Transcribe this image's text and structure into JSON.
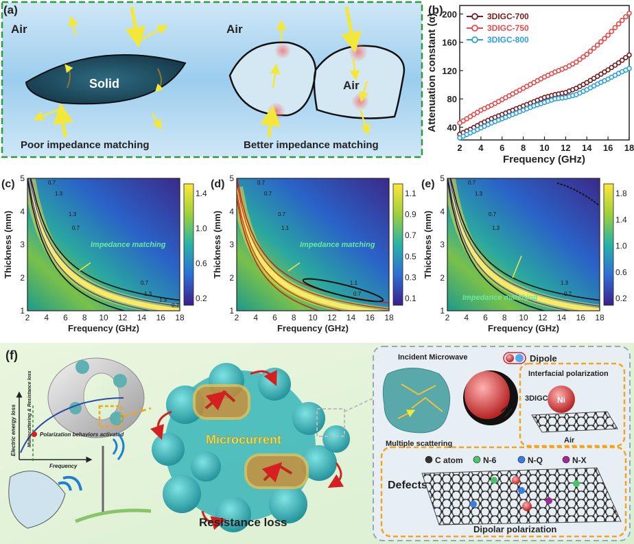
{
  "panel_a": {
    "label": "(a)",
    "left": {
      "air": "Air",
      "solid": "Solid",
      "caption": "Poor impedance matching"
    },
    "right": {
      "air_top": "Air",
      "air_inside": "Air",
      "caption": "Better impedance matching"
    }
  },
  "panel_b": {
    "label": "(b)",
    "chart_data": {
      "type": "line",
      "title": "",
      "xlabel": "Frequency (GHz)",
      "ylabel": "Attenuation constant (α)",
      "xlim": [
        2,
        18
      ],
      "ylim": [
        22,
        212
      ],
      "xticks": [
        "2",
        "4",
        "6",
        "8",
        "10",
        "12",
        "14",
        "16",
        "18"
      ],
      "yticks": [
        "40",
        "80",
        "120",
        "160",
        "200"
      ],
      "x": [
        2,
        3,
        4,
        5,
        6,
        7,
        8,
        9,
        10,
        11,
        12,
        13,
        14,
        15,
        16,
        17,
        18
      ],
      "series": [
        {
          "name": "3DIGC-700",
          "color": "#7a1a1a",
          "values": [
            30,
            37,
            45,
            52,
            58,
            64,
            70,
            76,
            82,
            86,
            89,
            95,
            103,
            112,
            121,
            131,
            142
          ]
        },
        {
          "name": "3DIGC-750",
          "color": "#e84a4a",
          "values": [
            46,
            55,
            64,
            71,
            79,
            87,
            95,
            103,
            111,
            118,
            124,
            132,
            143,
            156,
            170,
            186,
            201
          ]
        },
        {
          "name": "3DIGC-800",
          "color": "#2aa0e0",
          "values": [
            25,
            32,
            39,
            46,
            52,
            58,
            64,
            70,
            75,
            80,
            82,
            86,
            93,
            101,
            108,
            116,
            123
          ]
        }
      ]
    }
  },
  "contour_maps": [
    {
      "label": "(c)",
      "xlabel": "Frequency (GHz)",
      "ylabel": "Thickness (mm)",
      "xticks": [
        "2",
        "4",
        "6",
        "8",
        "10",
        "12",
        "14",
        "16",
        "18"
      ],
      "yticks": [
        "1",
        "2",
        "3",
        "4",
        "5"
      ],
      "colorbar_ticks": [
        "1.4",
        "1.0",
        "0.6",
        "0.2"
      ],
      "annotation": "Impedance matching",
      "contour_labels": [
        "0.7",
        "1.3",
        "1.3",
        "0.7",
        "0.7",
        "1.3",
        "1.3",
        "0.7"
      ]
    },
    {
      "label": "(d)",
      "xlabel": "Frequency (GHz)",
      "ylabel": "Thickness (mm)",
      "xticks": [
        "2",
        "4",
        "6",
        "8",
        "10",
        "12",
        "14",
        "16",
        "18"
      ],
      "yticks": [
        "1",
        "2",
        "3",
        "4",
        "5"
      ],
      "colorbar_ticks": [
        "1.1",
        "0.9",
        "0.7",
        "0.5",
        "0.3",
        "0.1"
      ],
      "annotation": "Impedance matching",
      "contour_labels": [
        "0.7",
        "0.7",
        "0.7",
        "1.1",
        "1.1",
        "0.7"
      ]
    },
    {
      "label": "(e)",
      "xlabel": "Frequency (GHz)",
      "ylabel": "Thickness (mm)",
      "xticks": [
        "2",
        "4",
        "6",
        "8",
        "10",
        "12",
        "14",
        "16",
        "18"
      ],
      "yticks": [
        "1",
        "2",
        "3",
        "4",
        "5"
      ],
      "colorbar_ticks": [
        "1.8",
        "1.4",
        "1.0",
        "0.6",
        "0.2"
      ],
      "annotation": "Impedance matching",
      "contour_labels": [
        "0.7",
        "1.3",
        "0.7",
        "1.3",
        "1.3",
        "0.7"
      ]
    }
  ],
  "panel_f": {
    "label": "(f)",
    "graph": {
      "ylabel": "Electric energy loss",
      "xlabel": "Frequency",
      "curve_label": "Multiscattering & Resistance loss",
      "point_label": "Polarization behaviors activated"
    },
    "microcurrent": "Microcurrent",
    "resistance_loss": "Resistance loss",
    "incident_microwave": "Incident Microwave",
    "multiple_scattering": "Multiple scattering",
    "dipole": "Dipole",
    "interfacial_polarization": "Interfacial polarization",
    "material": "3DIGC",
    "ni": "Ni",
    "air": "Air",
    "legend": [
      "C atom",
      "N-6",
      "N-Q",
      "N-X"
    ],
    "legend_colors": [
      "#333333",
      "#4cc36a",
      "#3c7be0",
      "#a02a9a"
    ],
    "defects": "Defects",
    "dipolar_polarization": "Dipolar polarization"
  }
}
